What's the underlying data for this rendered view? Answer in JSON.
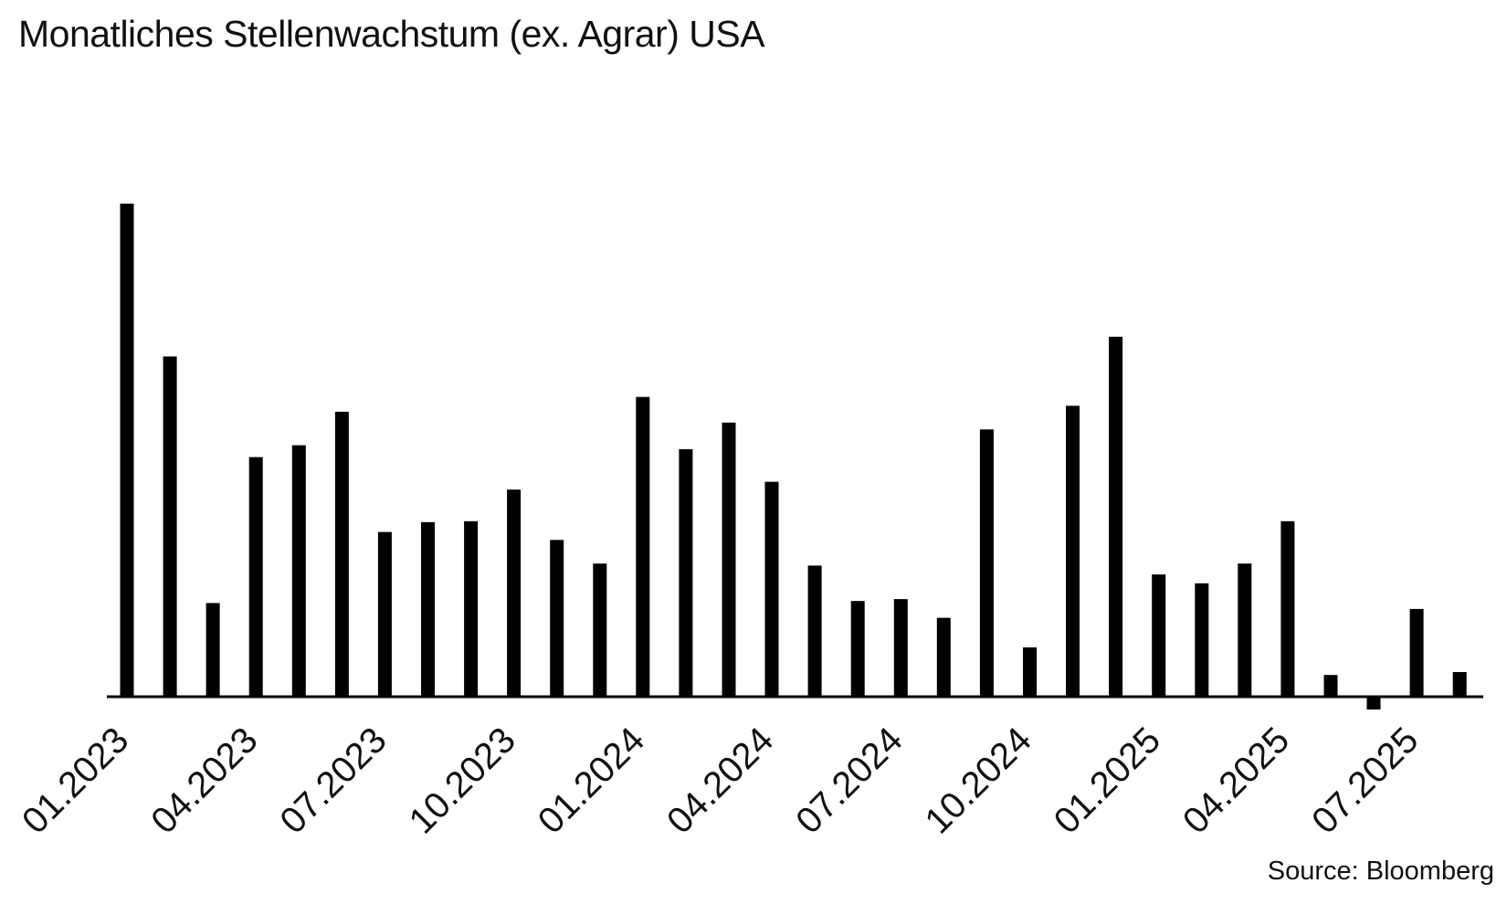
{
  "chart_data": {
    "type": "bar",
    "title": "Monatliches Stellenwachstum (ex. Agrar) USA",
    "source": "Source: Bloomberg",
    "xlabel": "",
    "ylabel": "",
    "grid": false,
    "categories": [
      "01.2023",
      "02.2023",
      "03.2023",
      "04.2023",
      "05.2023",
      "06.2023",
      "07.2023",
      "08.2023",
      "09.2023",
      "10.2023",
      "11.2023",
      "12.2023",
      "01.2024",
      "02.2024",
      "03.2024",
      "04.2024",
      "05.2024",
      "06.2024",
      "07.2024",
      "08.2024",
      "09.2024",
      "10.2024",
      "11.2024",
      "12.2024",
      "01.2025",
      "02.2025",
      "03.2025",
      "04.2025",
      "05.2025",
      "06.2025",
      "07.2025",
      "08.2025"
    ],
    "tick_labels": [
      "01.2023",
      "04.2023",
      "07.2023",
      "10.2023",
      "01.2024",
      "04.2024",
      "07.2024",
      "10.2024",
      "01.2025",
      "04.2025",
      "07.2025"
    ],
    "values": [
      500,
      345,
      95,
      243,
      255,
      289,
      167,
      177,
      178,
      210,
      159,
      135,
      304,
      251,
      278,
      218,
      133,
      97,
      99,
      80,
      271,
      50,
      295,
      365,
      124,
      115,
      135,
      178,
      22,
      -13,
      89,
      25
    ],
    "ylim": [
      -30,
      600
    ],
    "colors": {
      "bar": "#000000",
      "axis": "#000000"
    }
  }
}
